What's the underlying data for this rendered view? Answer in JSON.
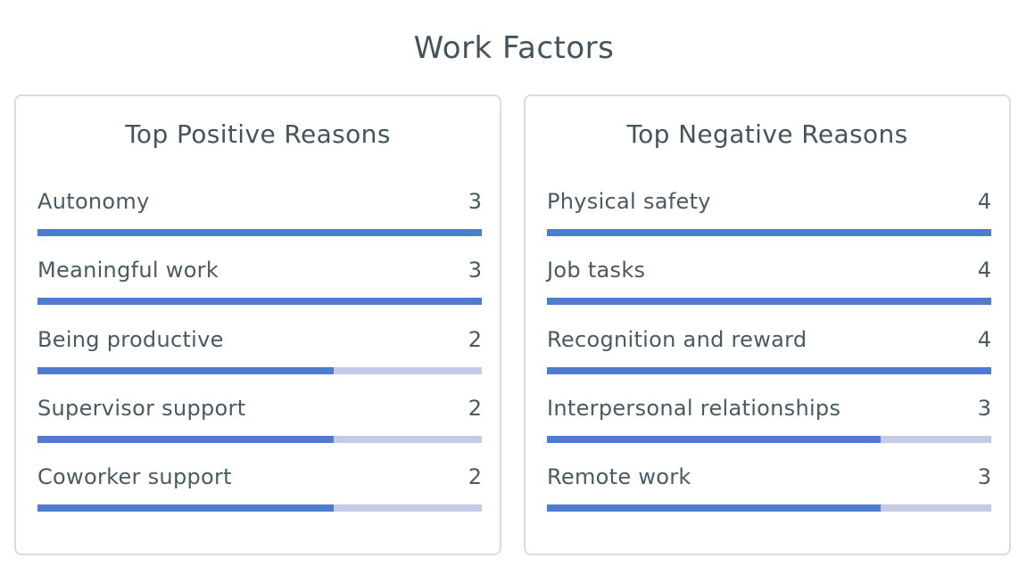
{
  "title": "Work Factors",
  "colors": {
    "bar_fill": "#4f7ccc",
    "bar_track": "#c5cae6",
    "text": "#4a5a62"
  },
  "chart_data": [
    {
      "type": "bar",
      "orientation": "horizontal",
      "title": "Top Positive Reasons",
      "categories": [
        "Autonomy",
        "Meaningful work",
        "Being productive",
        "Supervisor support",
        "Coworker support"
      ],
      "values": [
        3,
        3,
        2,
        2,
        2
      ],
      "xlim": [
        0,
        3
      ]
    },
    {
      "type": "bar",
      "orientation": "horizontal",
      "title": "Top Negative Reasons",
      "categories": [
        "Physical safety",
        "Job tasks",
        "Recognition and reward",
        "Interpersonal relationships",
        "Remote work"
      ],
      "values": [
        4,
        4,
        4,
        3,
        3
      ],
      "xlim": [
        0,
        4
      ]
    }
  ]
}
